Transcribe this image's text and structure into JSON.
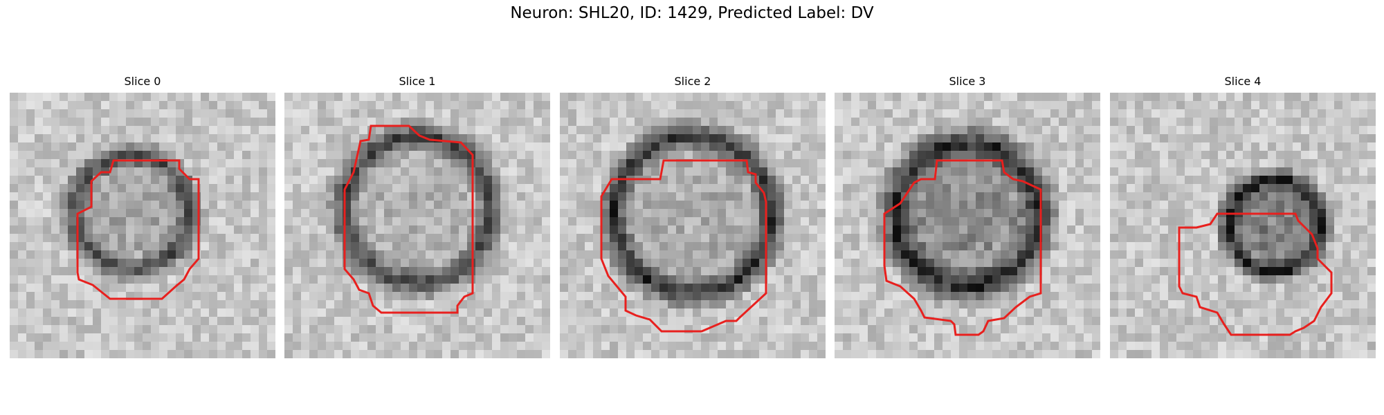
{
  "figure": {
    "title": "Neuron: SHL20, ID: 1429, Predicted Label: DV",
    "contour_color": "#e8201e"
  },
  "slices": [
    {
      "label": "Slice 0"
    },
    {
      "label": "Slice 1"
    },
    {
      "label": "Slice 2"
    },
    {
      "label": "Slice 3"
    },
    {
      "label": "Slice 4"
    }
  ]
}
